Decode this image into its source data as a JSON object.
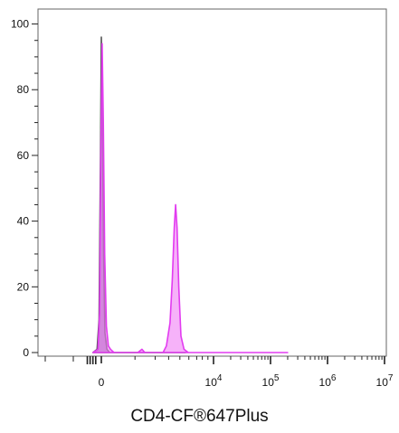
{
  "chart_data": {
    "type": "histogram",
    "xlabel": "CD4-CF®647Plus",
    "ylabel": "",
    "ylim": [
      0,
      104
    ],
    "y_ticks": [
      0,
      20,
      40,
      60,
      80,
      100
    ],
    "x_scale": "biexponential",
    "x_tick_labels": [
      {
        "base": "0",
        "exp": ""
      },
      {
        "base": "10",
        "exp": "4"
      },
      {
        "base": "10",
        "exp": "5"
      },
      {
        "base": "10",
        "exp": "6"
      },
      {
        "base": "10",
        "exp": "7"
      }
    ],
    "grid": false,
    "series": [
      {
        "color": "#555555",
        "fill": "#9b7bb0",
        "points": [
          [
            -0.3,
            0
          ],
          [
            -0.15,
            1
          ],
          [
            -0.08,
            10
          ],
          [
            -0.03,
            60
          ],
          [
            0,
            96
          ],
          [
            0.03,
            80
          ],
          [
            0.08,
            30
          ],
          [
            0.13,
            6
          ],
          [
            0.2,
            1
          ],
          [
            0.3,
            0
          ],
          [
            3.0,
            0
          ]
        ]
      },
      {
        "color": "#e23bf0",
        "fill": "#f07ff5",
        "points": [
          [
            -0.3,
            0
          ],
          [
            -0.12,
            1
          ],
          [
            -0.06,
            12
          ],
          [
            -0.02,
            60
          ],
          [
            0.03,
            94
          ],
          [
            0.07,
            70
          ],
          [
            0.12,
            30
          ],
          [
            0.18,
            8
          ],
          [
            0.25,
            2
          ],
          [
            0.33,
            1
          ],
          [
            0.45,
            0
          ],
          [
            1.3,
            0
          ],
          [
            1.45,
            1
          ],
          [
            1.55,
            0
          ],
          [
            2.2,
            0
          ],
          [
            2.32,
            2
          ],
          [
            2.45,
            9
          ],
          [
            2.53,
            22
          ],
          [
            2.6,
            38
          ],
          [
            2.65,
            45
          ],
          [
            2.7,
            38
          ],
          [
            2.76,
            20
          ],
          [
            2.84,
            5
          ],
          [
            2.95,
            1
          ],
          [
            3.1,
            0
          ],
          [
            5.3,
            0
          ]
        ]
      }
    ]
  }
}
